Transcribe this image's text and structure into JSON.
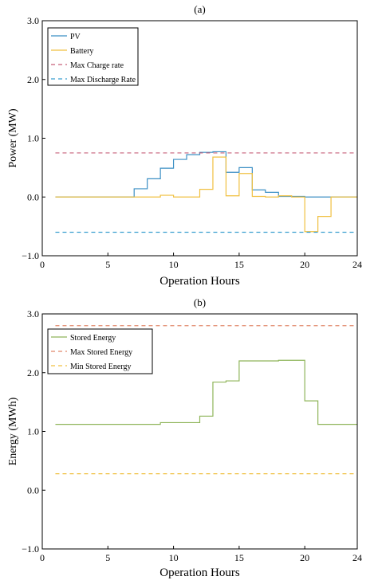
{
  "chart_data": [
    {
      "type": "line",
      "title": "(a)",
      "xlabel": "Operation Hours",
      "ylabel": "Power (MW)",
      "xlim": [
        0,
        24
      ],
      "ylim": [
        -1.0,
        3.0
      ],
      "xticks": [
        0,
        5,
        10,
        15,
        20,
        24
      ],
      "xtick_labels": [
        "0",
        "5",
        "10",
        "15",
        "20",
        "24"
      ],
      "yticks": [
        -1.0,
        0.0,
        1.0,
        2.0,
        3.0
      ],
      "ytick_labels": [
        "−1.0",
        "0.0",
        "1.0",
        "2.0",
        "3.0"
      ],
      "legend_position": "top-left",
      "grid": false,
      "series": [
        {
          "name": "PV",
          "style": "step",
          "color": "#3b8fc4",
          "dash": "",
          "points": [
            [
              1,
              0
            ],
            [
              7,
              0
            ],
            [
              7,
              0.14
            ],
            [
              8,
              0.14
            ],
            [
              8,
              0.31
            ],
            [
              9,
              0.31
            ],
            [
              9,
              0.49
            ],
            [
              10,
              0.49
            ],
            [
              10,
              0.64
            ],
            [
              11,
              0.64
            ],
            [
              11,
              0.72
            ],
            [
              12,
              0.72
            ],
            [
              12,
              0.76
            ],
            [
              13,
              0.76
            ],
            [
              13,
              0.77
            ],
            [
              14,
              0.77
            ],
            [
              14,
              0.42
            ],
            [
              15,
              0.42
            ],
            [
              15,
              0.5
            ],
            [
              16,
              0.5
            ],
            [
              16,
              0.12
            ],
            [
              17,
              0.12
            ],
            [
              17,
              0.08
            ],
            [
              18,
              0.08
            ],
            [
              18,
              0.01
            ],
            [
              20,
              0.01
            ],
            [
              20,
              0
            ],
            [
              22,
              0
            ],
            [
              22,
              0
            ],
            [
              24,
              0
            ]
          ]
        },
        {
          "name": "Battery",
          "style": "step",
          "color": "#f0c040",
          "dash": "",
          "points": [
            [
              1,
              0
            ],
            [
              9,
              0
            ],
            [
              9,
              0.03
            ],
            [
              10,
              0.03
            ],
            [
              10,
              0
            ],
            [
              12,
              0
            ],
            [
              12,
              0.13
            ],
            [
              13,
              0.13
            ],
            [
              13,
              0.68
            ],
            [
              14,
              0.68
            ],
            [
              14,
              0.02
            ],
            [
              15,
              0.02
            ],
            [
              15,
              0.4
            ],
            [
              16,
              0.4
            ],
            [
              16,
              0.01
            ],
            [
              17,
              0.01
            ],
            [
              17,
              0
            ],
            [
              18,
              0
            ],
            [
              18,
              0.02
            ],
            [
              19,
              0.02
            ],
            [
              19,
              0
            ],
            [
              20,
              0
            ],
            [
              20,
              -0.59
            ],
            [
              21,
              -0.59
            ],
            [
              21,
              -0.33
            ],
            [
              22,
              -0.33
            ],
            [
              22,
              0
            ],
            [
              24,
              0
            ]
          ]
        },
        {
          "name": "Max Charge rate",
          "style": "line",
          "color": "#c8607a",
          "dash": "5,4",
          "points": [
            [
              1,
              0.75
            ],
            [
              24,
              0.75
            ]
          ]
        },
        {
          "name": "Max Discharge Rate",
          "style": "line",
          "color": "#3b9fd0",
          "dash": "5,4",
          "points": [
            [
              1,
              -0.6
            ],
            [
              24,
              -0.6
            ]
          ]
        }
      ]
    },
    {
      "type": "line",
      "title": "(b)",
      "xlabel": "Operation Hours",
      "ylabel": "Energy (MWh)",
      "xlim": [
        0,
        24
      ],
      "ylim": [
        -1.0,
        3.0
      ],
      "xticks": [
        0,
        5,
        10,
        15,
        20,
        24
      ],
      "xtick_labels": [
        "0",
        "5",
        "10",
        "15",
        "20",
        "24"
      ],
      "yticks": [
        -1.0,
        0.0,
        1.0,
        2.0,
        3.0
      ],
      "ytick_labels": [
        "−1.0",
        "0.0",
        "1.0",
        "2.0",
        "3.0"
      ],
      "legend_position": "top-left",
      "grid": false,
      "series": [
        {
          "name": "Stored Energy",
          "style": "step",
          "color": "#8fb55a",
          "dash": "",
          "points": [
            [
              1,
              1.12
            ],
            [
              9,
              1.12
            ],
            [
              9,
              1.15
            ],
            [
              12,
              1.15
            ],
            [
              12,
              1.26
            ],
            [
              13,
              1.26
            ],
            [
              13,
              1.84
            ],
            [
              14,
              1.84
            ],
            [
              14,
              1.86
            ],
            [
              15,
              1.86
            ],
            [
              15,
              2.2
            ],
            [
              18,
              2.2
            ],
            [
              18,
              2.21
            ],
            [
              20,
              2.21
            ],
            [
              20,
              1.52
            ],
            [
              21,
              1.52
            ],
            [
              21,
              1.12
            ],
            [
              24,
              1.12
            ]
          ]
        },
        {
          "name": "Max Stored Energy",
          "style": "line",
          "color": "#e0866a",
          "dash": "5,4",
          "points": [
            [
              1,
              2.8
            ],
            [
              24,
              2.8
            ]
          ]
        },
        {
          "name": "Min Stored Energy",
          "style": "line",
          "color": "#f0c040",
          "dash": "5,4",
          "points": [
            [
              1,
              0.28
            ],
            [
              24,
              0.28
            ]
          ]
        }
      ]
    }
  ]
}
